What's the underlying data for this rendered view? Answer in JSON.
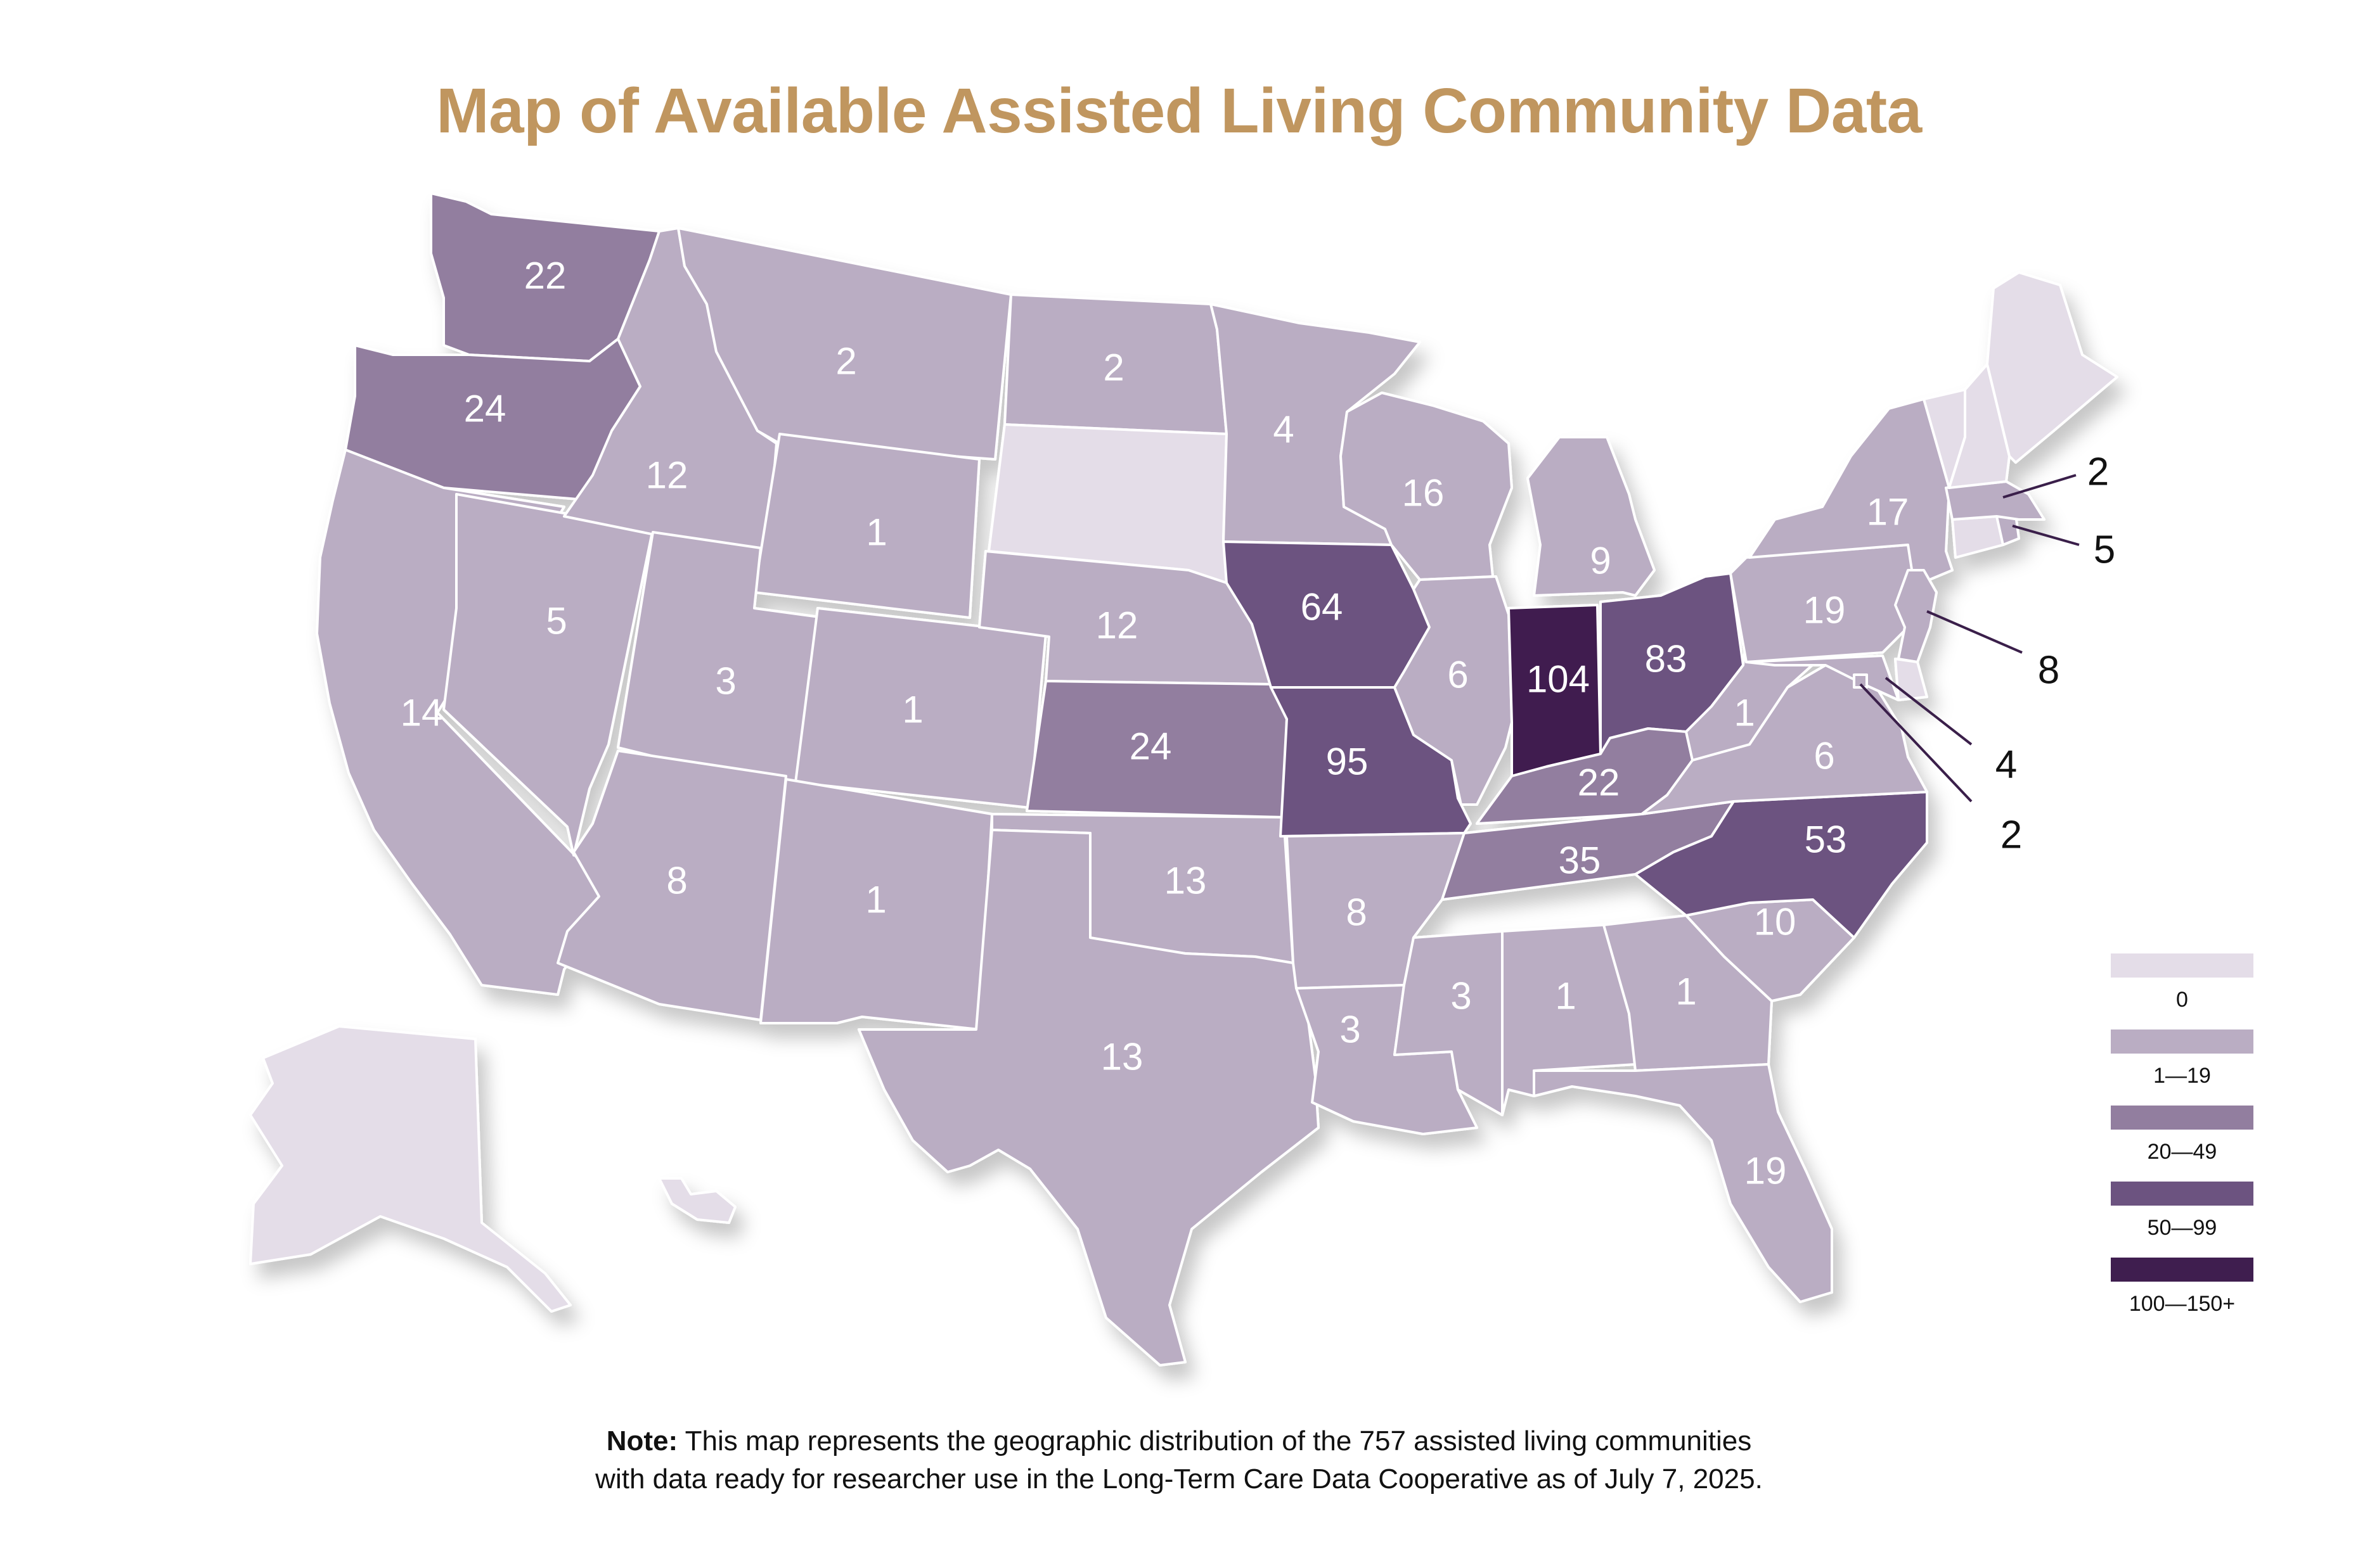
{
  "title": "Map of Available Assisted Living Community Data",
  "colors": {
    "title": "#C0965F",
    "bin_0": "#E4DDE8",
    "bin_1_19": "#BAADC3",
    "bin_20_49": "#927E9F",
    "bin_50_99": "#6C5380",
    "bin_100_150": "#3F1E4F"
  },
  "legend": [
    {
      "label": "0",
      "color": "#E4DDE8"
    },
    {
      "label": "1—19",
      "color": "#BAADC3"
    },
    {
      "label": "20—49",
      "color": "#927E9F"
    },
    {
      "label": "50—99",
      "color": "#6C5380"
    },
    {
      "label": "100—150+",
      "color": "#3F1E4F"
    }
  ],
  "states": {
    "WA": {
      "label": "22",
      "color": "#927E9F"
    },
    "OR": {
      "label": "24",
      "color": "#927E9F"
    },
    "CA": {
      "label": "14",
      "color": "#BAADC3"
    },
    "NV": {
      "label": "5",
      "color": "#BAADC3"
    },
    "ID": {
      "label": "12",
      "color": "#BAADC3"
    },
    "MT": {
      "label": "2",
      "color": "#BAADC3"
    },
    "WY": {
      "label": "1",
      "color": "#BAADC3"
    },
    "UT": {
      "label": "3",
      "color": "#BAADC3"
    },
    "CO": {
      "label": "1",
      "color": "#BAADC3"
    },
    "AZ": {
      "label": "8",
      "color": "#BAADC3"
    },
    "NM": {
      "label": "1",
      "color": "#BAADC3"
    },
    "ND": {
      "label": "2",
      "color": "#BAADC3"
    },
    "SD": {
      "label": "",
      "color": "#E4DDE8"
    },
    "NE": {
      "label": "12",
      "color": "#BAADC3"
    },
    "KS": {
      "label": "24",
      "color": "#927E9F"
    },
    "OK": {
      "label": "13",
      "color": "#BAADC3"
    },
    "TX": {
      "label": "13",
      "color": "#BAADC3"
    },
    "MN": {
      "label": "4",
      "color": "#BAADC3"
    },
    "IA": {
      "label": "64",
      "color": "#6C5380"
    },
    "MO": {
      "label": "95",
      "color": "#6C5380"
    },
    "AR": {
      "label": "8",
      "color": "#BAADC3"
    },
    "LA": {
      "label": "3",
      "color": "#BAADC3"
    },
    "WI": {
      "label": "16",
      "color": "#BAADC3"
    },
    "IL": {
      "label": "6",
      "color": "#BAADC3"
    },
    "MI": {
      "label": "9",
      "color": "#BAADC3"
    },
    "IN": {
      "label": "104",
      "color": "#3F1E4F"
    },
    "OH": {
      "label": "83",
      "color": "#6C5380"
    },
    "KY": {
      "label": "22",
      "color": "#927E9F"
    },
    "TN": {
      "label": "35",
      "color": "#927E9F"
    },
    "MS": {
      "label": "3",
      "color": "#BAADC3"
    },
    "AL": {
      "label": "1",
      "color": "#BAADC3"
    },
    "GA": {
      "label": "1",
      "color": "#BAADC3"
    },
    "FL": {
      "label": "19",
      "color": "#BAADC3"
    },
    "SC": {
      "label": "10",
      "color": "#BAADC3"
    },
    "NC": {
      "label": "53",
      "color": "#6C5380"
    },
    "VA": {
      "label": "6",
      "color": "#BAADC3"
    },
    "WV": {
      "label": "1",
      "color": "#BAADC3"
    },
    "PA": {
      "label": "19",
      "color": "#BAADC3"
    },
    "NY": {
      "label": "17",
      "color": "#BAADC3"
    },
    "ME": {
      "label": "",
      "color": "#E4DDE8"
    },
    "NH": {
      "label": "",
      "color": "#E4DDE8"
    },
    "VT": {
      "label": "",
      "color": "#E4DDE8"
    },
    "MA": {
      "label": "",
      "color": "#BAADC3"
    },
    "RI": {
      "label": "",
      "color": "#BAADC3"
    },
    "CT": {
      "label": "",
      "color": "#E4DDE8"
    },
    "NJ": {
      "label": "",
      "color": "#BAADC3"
    },
    "DE": {
      "label": "",
      "color": "#E4DDE8"
    },
    "MD": {
      "label": "",
      "color": "#BAADC3"
    },
    "DC": {
      "label": "",
      "color": "#BAADC3"
    },
    "AK": {
      "label": "",
      "color": "#E4DDE8"
    },
    "HI": {
      "label": "",
      "color": "#E4DDE8"
    }
  },
  "callouts": {
    "MA": "2",
    "RI": "5",
    "NJ": "8",
    "MD": "4",
    "DC": "2"
  },
  "note": {
    "bold": "Note:",
    "line1": " This map represents the geographic distribution of the 757 assisted living communities",
    "line2": "with data ready for researcher use in the Long-Term Care Data Cooperative as of July 7, 2025."
  }
}
